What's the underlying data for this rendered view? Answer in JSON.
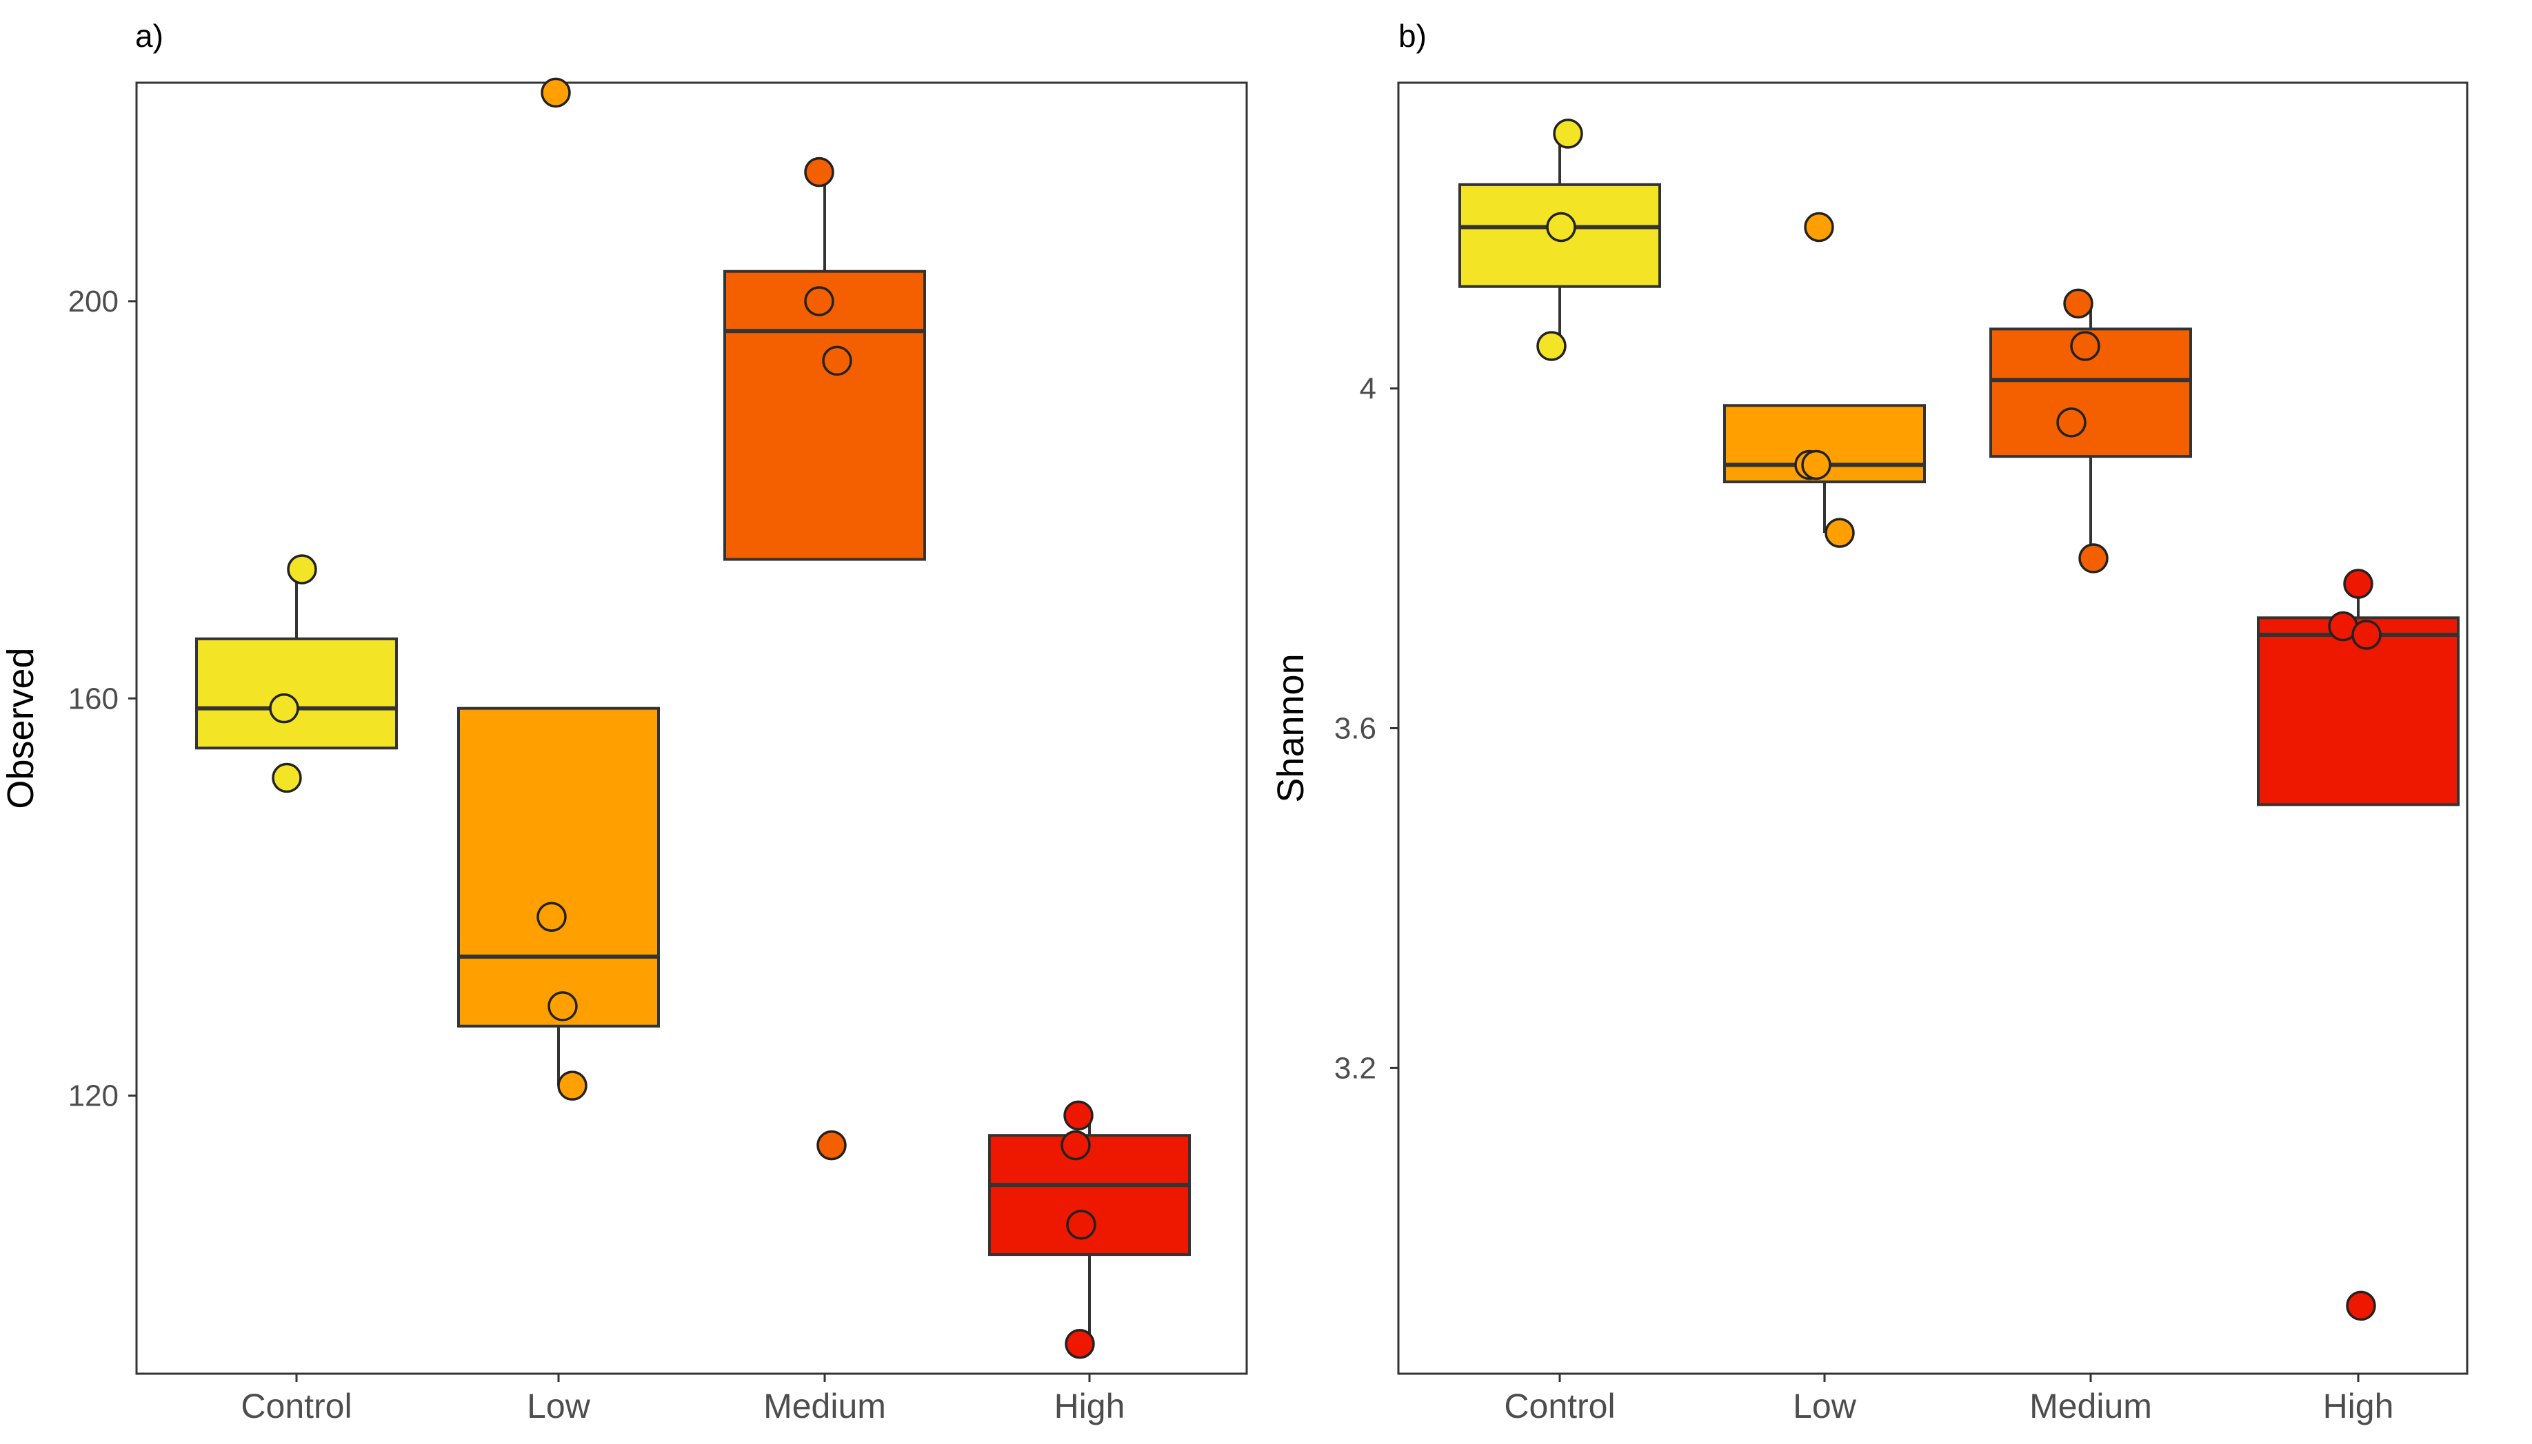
{
  "chart_data": [
    {
      "type": "box",
      "panel_label": "a)",
      "title": "",
      "xlabel": "",
      "ylabel": "Observed",
      "ylim": [
        92,
        222
      ],
      "yticks": [
        120,
        160,
        200
      ],
      "categories": [
        "Control",
        "Low",
        "Medium",
        "High"
      ],
      "colors": [
        "#F4E426",
        "#FFA000",
        "#F46000",
        "#EE1800"
      ],
      "boxes": [
        {
          "category": "Control",
          "lower_whisker": 155,
          "q1": 155,
          "median": 159,
          "q3": 166,
          "upper_whisker": 173,
          "points": [
            173,
            159,
            152
          ]
        },
        {
          "category": "Low",
          "lower_whisker": 121,
          "q1": 127,
          "median": 134,
          "q3": 159,
          "upper_whisker": 159,
          "points": [
            221,
            138,
            129,
            121
          ]
        },
        {
          "category": "Medium",
          "lower_whisker": 174,
          "q1": 174,
          "median": 197,
          "q3": 203,
          "upper_whisker": 213,
          "points": [
            213,
            200,
            194,
            115
          ]
        },
        {
          "category": "High",
          "lower_whisker": 95,
          "q1": 104,
          "median": 111,
          "q3": 116,
          "upper_whisker": 118,
          "points": [
            118,
            115,
            107,
            95
          ]
        }
      ]
    },
    {
      "type": "box",
      "panel_label": "b)",
      "title": "",
      "xlabel": "",
      "ylabel": "Shannon",
      "ylim": [
        2.84,
        4.36
      ],
      "yticks": [
        3.2,
        3.6,
        4.0
      ],
      "categories": [
        "Control",
        "Low",
        "Medium",
        "High"
      ],
      "colors": [
        "#F4E426",
        "#FFA000",
        "#F46000",
        "#EE1800"
      ],
      "boxes": [
        {
          "category": "Control",
          "lower_whisker": 4.05,
          "q1": 4.12,
          "median": 4.19,
          "q3": 4.24,
          "upper_whisker": 4.3,
          "points": [
            4.3,
            4.19,
            4.05
          ]
        },
        {
          "category": "Low",
          "lower_whisker": 3.83,
          "q1": 3.89,
          "median": 3.91,
          "q3": 3.98,
          "upper_whisker": 3.98,
          "points": [
            4.19,
            3.91,
            3.91,
            3.83
          ]
        },
        {
          "category": "Medium",
          "lower_whisker": 3.8,
          "q1": 3.92,
          "median": 4.01,
          "q3": 4.07,
          "upper_whisker": 4.1,
          "points": [
            4.1,
            4.05,
            3.96,
            3.8
          ]
        },
        {
          "category": "High",
          "lower_whisker": 3.51,
          "q1": 3.51,
          "median": 3.71,
          "q3": 3.73,
          "upper_whisker": 3.77,
          "points": [
            3.77,
            3.72,
            3.71,
            2.92
          ]
        }
      ]
    }
  ]
}
